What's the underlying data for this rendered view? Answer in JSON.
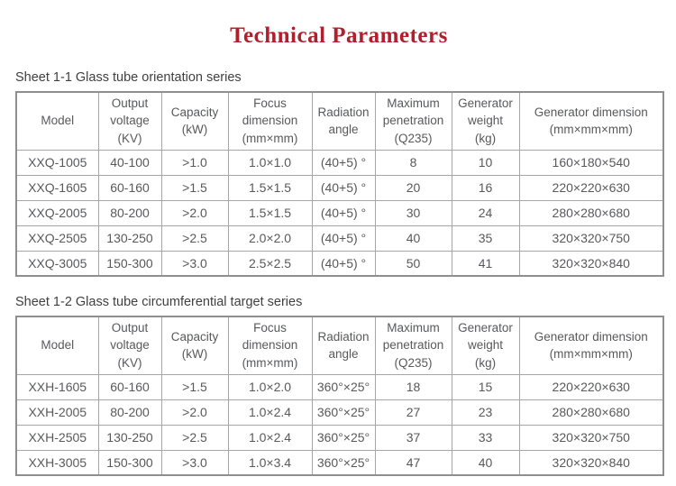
{
  "title": "Technical Parameters",
  "colors": {
    "title": "#b11f2c",
    "text": "#58595b",
    "caption": "#3f3f3f",
    "border": "#a6a6a6",
    "outer_border": "#8f8f8f"
  },
  "tables": [
    {
      "caption": "Sheet 1-1 Glass tube orientation series",
      "headers": [
        "Model",
        "Output\nvoltage\n(KV)",
        "Capacity\n(kW)",
        "Focus\ndimension\n(mm×mm)",
        "Radiation\nangle",
        "Maximum\npenetration\n(Q235)",
        "Generator\nweight\n(kg)",
        "Generator dimension\n(mm×mm×mm)"
      ],
      "rows": [
        [
          "XXQ-1005",
          "40-100",
          ">1.0",
          "1.0×1.0",
          "(40+5) °",
          "8",
          "10",
          "160×180×540"
        ],
        [
          "XXQ-1605",
          "60-160",
          ">1.5",
          "1.5×1.5",
          "(40+5) °",
          "20",
          "16",
          "220×220×630"
        ],
        [
          "XXQ-2005",
          "80-200",
          ">2.0",
          "1.5×1.5",
          "(40+5) °",
          "30",
          "24",
          "280×280×680"
        ],
        [
          "XXQ-2505",
          "130-250",
          ">2.5",
          "2.0×2.0",
          "(40+5) °",
          "40",
          "35",
          "320×320×750"
        ],
        [
          "XXQ-3005",
          "150-300",
          ">3.0",
          "2.5×2.5",
          "(40+5) °",
          "50",
          "41",
          "320×320×840"
        ]
      ]
    },
    {
      "caption": "Sheet 1-2 Glass tube circumferential target series",
      "headers": [
        "Model",
        "Output\nvoltage\n(KV)",
        "Capacity\n(kW)",
        "Focus\ndimension\n(mm×mm)",
        "Radiation\nangle",
        "Maximum\npenetration\n(Q235)",
        "Generator\nweight\n(kg)",
        "Generator dimension\n(mm×mm×mm)"
      ],
      "rows": [
        [
          "XXH-1605",
          "60-160",
          ">1.5",
          "1.0×2.0",
          "360°×25°",
          "18",
          "15",
          "220×220×630"
        ],
        [
          "XXH-2005",
          "80-200",
          ">2.0",
          "1.0×2.4",
          "360°×25°",
          "27",
          "23",
          "280×280×680"
        ],
        [
          "XXH-2505",
          "130-250",
          ">2.5",
          "1.0×2.4",
          "360°×25°",
          "37",
          "33",
          "320×320×750"
        ],
        [
          "XXH-3005",
          "150-300",
          ">3.0",
          "1.0×3.4",
          "360°×25°",
          "47",
          "40",
          "320×320×840"
        ]
      ]
    }
  ]
}
